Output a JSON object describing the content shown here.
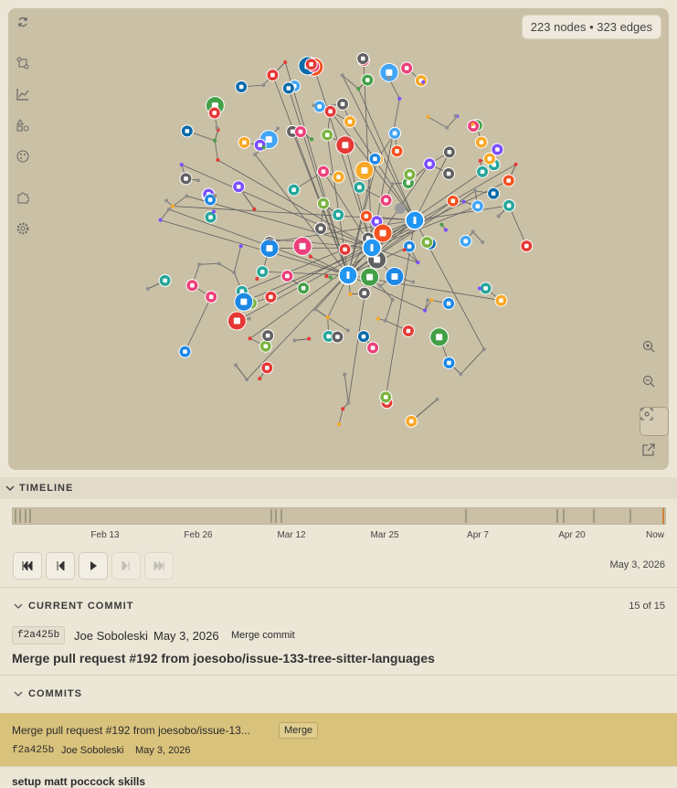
{
  "graph": {
    "stats": "223 nodes • 323 edges"
  },
  "timeline": {
    "header": "TIMELINE",
    "labels": [
      "Feb 13",
      "Feb 26",
      "Mar 12",
      "Mar 25",
      "Apr 7",
      "Apr 20",
      "Now"
    ],
    "date": "May 3, 2026"
  },
  "current_commit": {
    "header": "CURRENT COMMIT",
    "position": "15 of 15",
    "hash": "f2a425b",
    "author": "Joe Soboleski",
    "date": "May 3, 2026",
    "kind": "Merge commit",
    "message": "Merge pull request #192 from joesobo/issue-133-tree-sitter-languages"
  },
  "commits": {
    "header": "COMMITS",
    "items": [
      {
        "message": "Merge pull request #192 from joesobo/issue-13...",
        "tag": "Merge",
        "hash": "f2a425b",
        "author": "Joe Soboleski",
        "date": "May 3, 2026"
      },
      {
        "message": "setup matt poccock skills"
      }
    ]
  }
}
